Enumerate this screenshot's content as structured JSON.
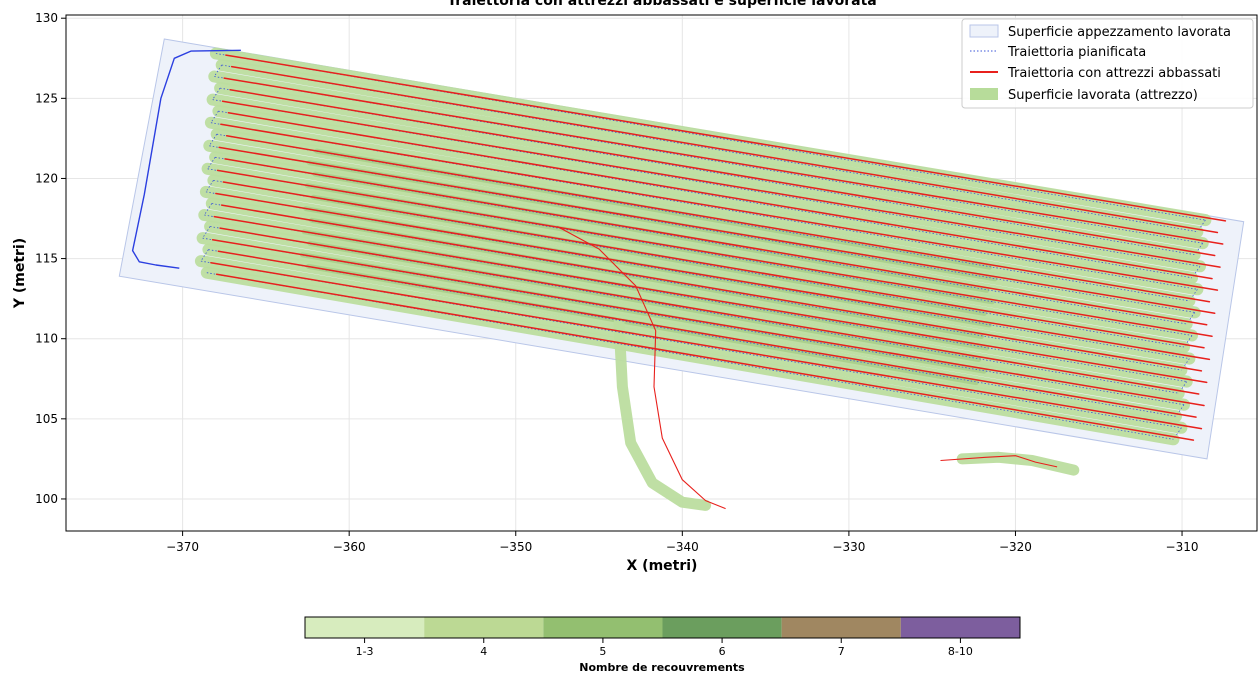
{
  "chart_data": {
    "type": "line",
    "title": "Traiettoria con attrezzi abbassati e superficie lavorata",
    "xlabel": "X (metri)",
    "ylabel": "Y (metri)",
    "xlim": [
      -377.0,
      -305.5
    ],
    "ylim": [
      98.0,
      130.2
    ],
    "xticks": [
      -370,
      -360,
      -350,
      -340,
      -330,
      -320,
      -310
    ],
    "yticks": [
      100,
      105,
      110,
      115,
      120,
      125,
      130
    ],
    "grid": true,
    "legend_position": "top-right",
    "legend": [
      {
        "label": "Superficie appezzamento lavorata",
        "kind": "patch",
        "color": "#eef2fa"
      },
      {
        "label": "Traiettoria pianificata",
        "kind": "dotted-line",
        "color": "#3a55d8"
      },
      {
        "label": "Traiettoria con attrezzi abbassati",
        "kind": "line",
        "color": "#e8201c"
      },
      {
        "label": "Superficie lavorata (attrezzo)",
        "kind": "patch",
        "color": "#b7dc9a"
      }
    ],
    "field_polygon": [
      [
        -371.1,
        128.7
      ],
      [
        -306.3,
        117.3
      ],
      [
        -308.5,
        102.5
      ],
      [
        -373.8,
        113.9
      ]
    ],
    "pass_line": {
      "x_start": -368.0,
      "x_end": -308.8,
      "y_start_first": 127.8,
      "y_end_first": 117.4,
      "y_step": -0.72,
      "count": 20,
      "x_start_slope": -0.09,
      "x_end_slope": -0.07
    },
    "headland_curve": [
      [
        -366.5,
        128.0
      ],
      [
        -369.5,
        127.95
      ],
      [
        -370.5,
        127.5
      ],
      [
        -371.3,
        125.0
      ],
      [
        -371.8,
        122.0
      ],
      [
        -372.3,
        119.0
      ],
      [
        -372.8,
        116.5
      ],
      [
        -373.0,
        115.5
      ],
      [
        -372.6,
        114.8
      ],
      [
        -371.6,
        114.6
      ],
      [
        -370.2,
        114.4
      ]
    ],
    "stray_paths": [
      [
        [
          -347.5,
          117.0
        ],
        [
          -345.0,
          115.6
        ],
        [
          -342.8,
          113.3
        ],
        [
          -341.6,
          110.5
        ],
        [
          -341.7,
          107.0
        ],
        [
          -341.2,
          103.8
        ],
        [
          -340.0,
          101.2
        ],
        [
          -338.6,
          99.9
        ],
        [
          -337.4,
          99.4
        ]
      ],
      [
        [
          -324.5,
          102.4
        ],
        [
          -321.8,
          102.6
        ],
        [
          -320.0,
          102.7
        ],
        [
          -318.8,
          102.3
        ],
        [
          -317.5,
          102.0
        ]
      ]
    ],
    "stray_coverage": [
      [
        [
          -343.8,
          111.0
        ],
        [
          -343.6,
          107.0
        ],
        [
          -343.1,
          103.5
        ],
        [
          -341.8,
          101.0
        ],
        [
          -340.0,
          99.8
        ],
        [
          -338.6,
          99.6
        ]
      ],
      [
        [
          -323.2,
          102.5
        ],
        [
          -321.0,
          102.6
        ],
        [
          -319.0,
          102.4
        ],
        [
          -316.5,
          101.8
        ]
      ]
    ],
    "colorbar": {
      "label": "Nombre de recouvrements",
      "categories": [
        "1-3",
        "4",
        "5",
        "6",
        "7",
        "8-10"
      ],
      "colors": [
        "#d7ecbe",
        "#bcd994",
        "#93bf70",
        "#6b9e5e",
        "#a08761",
        "#7d5e9e"
      ]
    }
  }
}
